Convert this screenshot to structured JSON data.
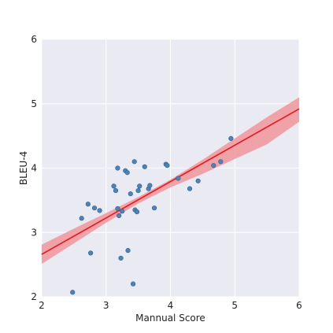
{
  "chart_data": {
    "type": "scatter",
    "title": "",
    "xlabel": "Mannual Score",
    "ylabel": "BLEU-4",
    "xlim": [
      2,
      6
    ],
    "ylim": [
      2,
      6
    ],
    "x_ticks": [
      "2",
      "3",
      "4",
      "5",
      "6"
    ],
    "y_ticks": [
      "2",
      "3",
      "4",
      "5",
      "6"
    ],
    "grid": true,
    "colors": {
      "background": "#eaeaf2",
      "grid": "#ffffff",
      "points": "#4c84b8",
      "points_edge": "#2f5f8f",
      "regression_line": "#e8161b",
      "confidence_band": "#f08a8f"
    },
    "points": [
      {
        "x": 2.48,
        "y": 2.07
      },
      {
        "x": 2.62,
        "y": 3.22
      },
      {
        "x": 2.72,
        "y": 3.44
      },
      {
        "x": 2.76,
        "y": 2.68
      },
      {
        "x": 2.82,
        "y": 3.38
      },
      {
        "x": 2.9,
        "y": 3.34
      },
      {
        "x": 3.12,
        "y": 3.72
      },
      {
        "x": 3.15,
        "y": 3.65
      },
      {
        "x": 3.18,
        "y": 3.37
      },
      {
        "x": 3.18,
        "y": 4.0
      },
      {
        "x": 3.2,
        "y": 3.26
      },
      {
        "x": 3.23,
        "y": 2.6
      },
      {
        "x": 3.25,
        "y": 3.33
      },
      {
        "x": 3.3,
        "y": 3.96
      },
      {
        "x": 3.33,
        "y": 3.93
      },
      {
        "x": 3.34,
        "y": 2.72
      },
      {
        "x": 3.38,
        "y": 3.6
      },
      {
        "x": 3.42,
        "y": 2.2
      },
      {
        "x": 3.44,
        "y": 4.1
      },
      {
        "x": 3.45,
        "y": 3.35
      },
      {
        "x": 3.48,
        "y": 3.32
      },
      {
        "x": 3.5,
        "y": 3.65
      },
      {
        "x": 3.52,
        "y": 3.72
      },
      {
        "x": 3.6,
        "y": 4.02
      },
      {
        "x": 3.66,
        "y": 3.68
      },
      {
        "x": 3.68,
        "y": 3.73
      },
      {
        "x": 3.75,
        "y": 3.38
      },
      {
        "x": 3.93,
        "y": 4.06
      },
      {
        "x": 3.95,
        "y": 4.04
      },
      {
        "x": 4.12,
        "y": 3.84
      },
      {
        "x": 4.3,
        "y": 3.68
      },
      {
        "x": 4.43,
        "y": 3.8
      },
      {
        "x": 4.67,
        "y": 4.04
      },
      {
        "x": 4.78,
        "y": 4.1
      },
      {
        "x": 4.94,
        "y": 4.46
      }
    ],
    "regression": {
      "x": [
        2,
        6
      ],
      "y": [
        2.66,
        4.92
      ]
    },
    "confidence_band": {
      "x": [
        2,
        2.5,
        3,
        3.5,
        4,
        4.5,
        5,
        5.5,
        6
      ],
      "upper": [
        2.81,
        3.06,
        3.3,
        3.55,
        3.82,
        4.13,
        4.46,
        4.79,
        5.1
      ],
      "lower": [
        2.51,
        2.83,
        3.15,
        3.45,
        3.7,
        3.91,
        4.14,
        4.37,
        4.72
      ]
    }
  }
}
